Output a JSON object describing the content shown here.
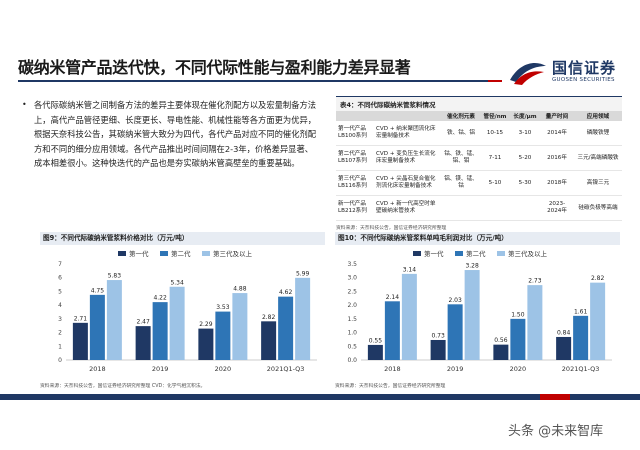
{
  "page": {
    "title": "碳纳米管产品迭代快，不同代际性能与盈利能力差异显著",
    "logo_cn": "国信证券",
    "logo_en": "GUOSEN SECURITIES",
    "brand_colors": {
      "navy": "#1f3864",
      "red": "#c00000"
    },
    "watermark": "头条 @未来智库"
  },
  "bullet": {
    "icon": "bullet-dot",
    "text": "各代际碳纳米管之间制备方法的差异主要体现在催化剂配方以及宏量制备方法上，高代产品管径更细、长度更长、导电性能、机械性能等各方面更为优异，根据天奈科技公告，其碳纳米管大致分为四代，各代产品对应不同的催化剂配方和不同的细分应用领域。各代产品推出时间间隔在2-3年，价格差异显著、成本相差很小。这种快迭代的产品也是夯实碳纳米管高壁垒的重要基础。"
  },
  "table": {
    "title": "表4：不同代际碳纳米管浆料情况",
    "headers": [
      "",
      "",
      "催化剂元素",
      "管径/nm",
      "长度/μm",
      "量产时间",
      "应用领域"
    ],
    "rows": [
      [
        "第一代产品 LB100系列",
        "CVD + 纳米聚团流化床宏量制备技术",
        "铁、钴、铝",
        "10-15",
        "3-10",
        "2014年",
        "磷酸铁锂"
      ],
      [
        "第二代产品 LB107系列",
        "CVD + 变负压生长流化床宏量制备技术",
        "钴、铁、锰、铝、钼",
        "7-11",
        "5-20",
        "2016年",
        "三元/高端磷酸铁"
      ],
      [
        "第三代产品 LB116系列",
        "CVD + 尖晶石复合催化剂流化床宏量制备技术",
        "铝、镁、锰、钴",
        "5-10",
        "5-30",
        "2018年",
        "高镍三元"
      ],
      [
        "新一代产品 LB212系列",
        "CVD + 新一代高空时单壁碳纳米管技术",
        "",
        "",
        "",
        "2023-2024年",
        "硅碳负极等高端"
      ]
    ],
    "source": "资料来源：天奈科技公告，国信证券经济研究所整理"
  },
  "chart_price": {
    "title": "图9：不同代际碳纳米管浆料价格对比（万元/吨）",
    "source": "资料来源：天奈科技公告，国信证券经济研究所整理  CVD：化学气相沉积法。"
  },
  "chart_margin": {
    "title": "图10：不同代际碳纳米管浆料单吨毛利润对比（万元/吨）",
    "source": "资料来源：天奈科技公告，国信证券经济研究所整理"
  },
  "chart_data": [
    {
      "type": "bar",
      "title": "图9：不同代际碳纳米管浆料价格对比（万元/吨）",
      "categories": [
        "2018",
        "2019",
        "2020",
        "2021Q1-Q3"
      ],
      "series": [
        {
          "name": "第一代",
          "values": [
            2.71,
            2.47,
            2.29,
            2.82
          ],
          "color": "#1f3864"
        },
        {
          "name": "第二代",
          "values": [
            4.75,
            4.22,
            3.53,
            4.62
          ],
          "color": "#2e75b6"
        },
        {
          "name": "第三代及以上",
          "values": [
            5.83,
            5.34,
            4.88,
            5.99
          ],
          "color": "#9dc3e6"
        }
      ],
      "yticks": [
        "0",
        "1",
        "2",
        "3",
        "4",
        "5",
        "6",
        "7"
      ],
      "ylim": [
        0,
        7
      ],
      "legend": "top",
      "grid": false
    },
    {
      "type": "bar",
      "title": "图10：不同代际碳纳米管浆料单吨毛利润对比（万元/吨）",
      "categories": [
        "2018",
        "2019",
        "2020",
        "2021Q1-Q3"
      ],
      "series": [
        {
          "name": "第一代",
          "values": [
            0.55,
            0.73,
            0.56,
            0.84
          ],
          "color": "#1f3864"
        },
        {
          "name": "第二代",
          "values": [
            2.14,
            2.03,
            1.5,
            1.61
          ],
          "color": "#2e75b6"
        },
        {
          "name": "第三代及以上",
          "values": [
            3.14,
            3.28,
            2.73,
            2.82
          ],
          "color": "#9dc3e6"
        }
      ],
      "yticks": [
        "0.0",
        "0.5",
        "1.0",
        "1.5",
        "2.0",
        "2.5",
        "3.0",
        "3.5"
      ],
      "ylim": [
        0,
        3.5
      ],
      "legend": "top",
      "grid": false
    }
  ]
}
